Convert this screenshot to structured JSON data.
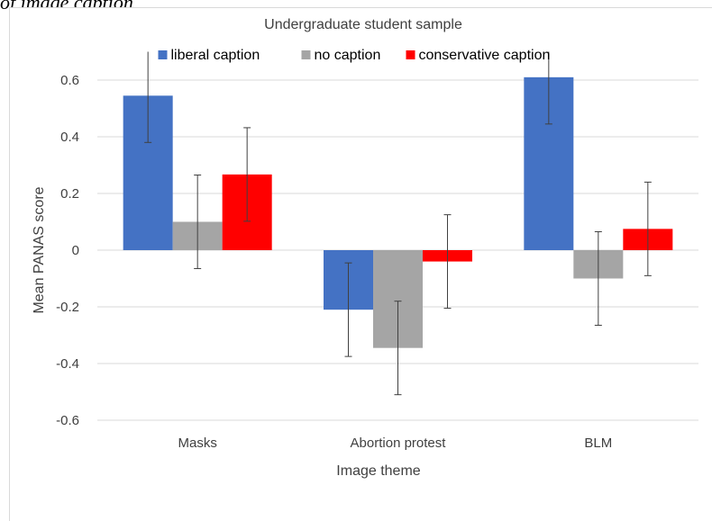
{
  "top_caption": "of image caption",
  "chart_data": {
    "type": "bar",
    "title": "Undergraduate student sample",
    "xlabel": "Image theme",
    "ylabel": "Mean PANAS score",
    "categories": [
      "Masks",
      "Abortion protest",
      "BLM"
    ],
    "series": [
      {
        "name": "liberal caption",
        "color": "#4472c4",
        "values": [
          0.545,
          -0.21,
          0.61
        ],
        "error": [
          0.165,
          0.165,
          0.165
        ]
      },
      {
        "name": "no caption",
        "color": "#a5a5a5",
        "values": [
          0.1,
          -0.345,
          -0.1
        ],
        "error": [
          0.165,
          0.165,
          0.165
        ]
      },
      {
        "name": "conservative caption",
        "color": "#ff0000",
        "values": [
          0.267,
          -0.04,
          0.075
        ],
        "error": [
          0.165,
          0.165,
          0.165
        ]
      }
    ],
    "ylim": [
      -0.6,
      0.7
    ],
    "yticks": [
      0.6,
      0.4,
      0.2,
      0,
      -0.2,
      -0.4,
      -0.6
    ],
    "ytick_labels": [
      "0.6",
      "0.4",
      "0.2",
      "0",
      "-0.2",
      "-0.4",
      "-0.6"
    ],
    "grid": true,
    "legend": "top"
  }
}
